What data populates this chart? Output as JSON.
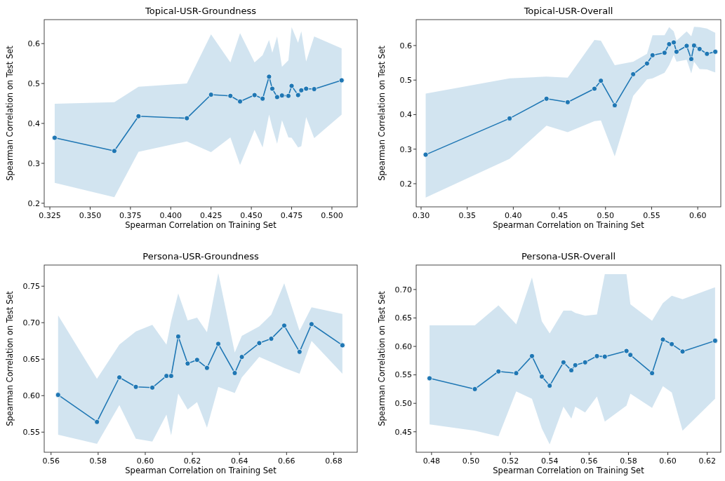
{
  "chart_data": [
    {
      "type": "line",
      "title": "Topical-USR-Groundness",
      "xlabel": "Spearman Correlation on Training Set",
      "ylabel": "Spearman Correlation on Test Set",
      "marker": "circle",
      "line_style": "solid",
      "grid": false,
      "xlim": [
        0.3215,
        0.5157
      ],
      "ylim": [
        0.191,
        0.66
      ],
      "xticks": [
        0.325,
        {
          "value": 0.35,
          "label": "0.350"
        },
        0.375,
        {
          "value": 0.4,
          "label": "0.400"
        },
        0.425,
        {
          "value": 0.45,
          "label": "0.450"
        },
        0.475,
        {
          "value": 0.5,
          "label": "0.500"
        }
      ],
      "yticks": [
        0.2,
        0.3,
        0.4,
        0.5,
        0.6
      ],
      "series": [
        {
          "color": "#1f77b4",
          "x": [
            0.328,
            0.365,
            0.38,
            0.41,
            0.425,
            0.437,
            0.443,
            0.452,
            0.457,
            0.461,
            0.463,
            0.466,
            0.469,
            0.473,
            0.475,
            0.479,
            0.481,
            0.484,
            0.489,
            0.506
          ],
          "values": [
            0.364,
            0.331,
            0.418,
            0.413,
            0.472,
            0.469,
            0.455,
            0.471,
            0.462,
            0.517,
            0.487,
            0.466,
            0.47,
            0.469,
            0.494,
            0.471,
            0.483,
            0.487,
            0.486,
            0.508
          ],
          "upper": [
            0.449,
            0.453,
            0.492,
            0.5,
            0.623,
            0.553,
            0.626,
            0.553,
            0.571,
            0.609,
            0.577,
            0.618,
            0.542,
            0.558,
            0.641,
            0.602,
            0.631,
            0.555,
            0.618,
            0.588
          ],
          "lower": [
            0.251,
            0.215,
            0.329,
            0.355,
            0.328,
            0.365,
            0.296,
            0.384,
            0.34,
            0.422,
            0.39,
            0.349,
            0.408,
            0.365,
            0.364,
            0.34,
            0.343,
            0.416,
            0.363,
            0.422
          ]
        }
      ]
    },
    {
      "type": "line",
      "title": "Topical-USR-Overall",
      "xlabel": "Spearman Correlation on Training Set",
      "ylabel": "Spearman Correlation on Test Set",
      "marker": "circle",
      "line_style": "solid",
      "grid": false,
      "xlim": [
        0.2947,
        0.625
      ],
      "ylim": [
        0.133,
        0.675
      ],
      "xticks": [
        {
          "value": 0.3,
          "label": "0.30"
        },
        0.35,
        {
          "value": 0.4,
          "label": "0.40"
        },
        0.45,
        {
          "value": 0.5,
          "label": "0.50"
        },
        0.55,
        {
          "value": 0.6,
          "label": "0.60"
        }
      ],
      "yticks": [
        0.2,
        0.3,
        0.4,
        0.5,
        0.6
      ],
      "series": [
        {
          "color": "#1f77b4",
          "x": [
            0.305,
            0.396,
            0.436,
            0.459,
            0.488,
            0.495,
            0.51,
            0.53,
            0.545,
            0.551,
            0.564,
            0.569,
            0.574,
            0.577,
            0.588,
            0.593,
            0.596,
            0.602,
            0.61,
            0.619
          ],
          "values": [
            0.284,
            0.389,
            0.446,
            0.436,
            0.475,
            0.498,
            0.427,
            0.517,
            0.548,
            0.572,
            0.579,
            0.604,
            0.609,
            0.582,
            0.599,
            0.561,
            0.6,
            0.59,
            0.576,
            0.582
          ],
          "upper": [
            0.461,
            0.505,
            0.51,
            0.507,
            0.616,
            0.614,
            0.543,
            0.553,
            0.576,
            0.63,
            0.63,
            0.653,
            0.641,
            0.614,
            0.641,
            0.627,
            0.654,
            0.653,
            0.649,
            0.637
          ],
          "lower": [
            0.16,
            0.272,
            0.368,
            0.349,
            0.381,
            0.383,
            0.279,
            0.454,
            0.502,
            0.505,
            0.521,
            0.543,
            0.573,
            0.553,
            0.559,
            0.519,
            0.553,
            0.532,
            0.531,
            0.522
          ]
        }
      ]
    },
    {
      "type": "line",
      "title": "Persona-USR-Groundness",
      "xlabel": "Spearman Correlation on Training Set",
      "ylabel": "Spearman Correlation on Test Set",
      "marker": "circle",
      "line_style": "solid",
      "grid": false,
      "xlim": [
        0.5571,
        0.69
      ],
      "ylim": [
        0.5224,
        0.779
      ],
      "xticks": [
        0.56,
        0.58,
        {
          "value": 0.6,
          "label": "0.60"
        },
        0.62,
        0.64,
        0.66,
        0.68
      ],
      "yticks": [
        0.55,
        {
          "value": 0.6,
          "label": "0.60"
        },
        0.65,
        {
          "value": 0.7,
          "label": "0.70"
        },
        0.75
      ],
      "series": [
        {
          "color": "#1f77b4",
          "x": [
            0.563,
            0.5795,
            0.589,
            0.596,
            0.603,
            0.609,
            0.611,
            0.614,
            0.618,
            0.622,
            0.6262,
            0.631,
            0.638,
            0.641,
            0.6484,
            0.6535,
            0.659,
            0.6655,
            0.6706,
            0.6837
          ],
          "values": [
            0.601,
            0.564,
            0.625,
            0.612,
            0.611,
            0.627,
            0.627,
            0.681,
            0.644,
            0.649,
            0.638,
            0.671,
            0.631,
            0.653,
            0.672,
            0.678,
            0.696,
            0.66,
            0.698,
            0.669
          ],
          "upper": [
            0.71,
            0.623,
            0.67,
            0.688,
            0.697,
            0.67,
            0.702,
            0.74,
            0.703,
            0.707,
            0.687,
            0.768,
            0.659,
            0.682,
            0.695,
            0.711,
            0.754,
            0.689,
            0.721,
            0.712
          ],
          "lower": [
            0.5465,
            0.534,
            0.587,
            0.541,
            0.537,
            0.574,
            0.5455,
            0.603,
            0.581,
            0.591,
            0.556,
            0.612,
            0.6035,
            0.625,
            0.653,
            0.646,
            0.638,
            0.63,
            0.675,
            0.63
          ]
        }
      ]
    },
    {
      "type": "line",
      "title": "Persona-USR-Overall",
      "xlabel": "Spearman Correlation on Training Set",
      "ylabel": "Spearman Correlation on Test Set",
      "marker": "circle",
      "line_style": "solid",
      "grid": false,
      "xlim": [
        0.4722,
        0.6269
      ],
      "ylim": [
        0.414,
        0.743
      ],
      "xticks": [
        0.48,
        {
          "value": 0.5,
          "label": "0.50"
        },
        0.52,
        0.54,
        0.56,
        0.58,
        {
          "value": 0.6,
          "label": "0.60"
        },
        0.62
      ],
      "yticks": [
        0.45,
        {
          "value": 0.5,
          "label": "0.50"
        },
        0.55,
        {
          "value": 0.6,
          "label": "0.60"
        },
        0.65,
        {
          "value": 0.7,
          "label": "0.70"
        }
      ],
      "series": [
        {
          "color": "#1f77b4",
          "x": [
            0.479,
            0.502,
            0.514,
            0.523,
            0.531,
            0.536,
            0.54,
            0.547,
            0.551,
            0.553,
            0.558,
            0.564,
            0.568,
            0.579,
            0.581,
            0.592,
            0.5975,
            0.602,
            0.6075,
            0.624
          ],
          "values": [
            0.544,
            0.525,
            0.556,
            0.553,
            0.583,
            0.547,
            0.531,
            0.572,
            0.558,
            0.567,
            0.572,
            0.583,
            0.582,
            0.592,
            0.585,
            0.553,
            0.612,
            0.604,
            0.591,
            0.61
          ],
          "upper": [
            0.637,
            0.637,
            0.672,
            0.639,
            0.721,
            0.644,
            0.623,
            0.663,
            0.663,
            0.659,
            0.654,
            0.656,
            0.727,
            0.727,
            0.674,
            0.645,
            0.676,
            0.689,
            0.683,
            0.704
          ],
          "lower": [
            0.463,
            0.452,
            0.442,
            0.521,
            0.508,
            0.456,
            0.428,
            0.494,
            0.473,
            0.494,
            0.484,
            0.512,
            0.468,
            0.496,
            0.517,
            0.492,
            0.53,
            0.519,
            0.452,
            0.508
          ]
        }
      ]
    }
  ]
}
